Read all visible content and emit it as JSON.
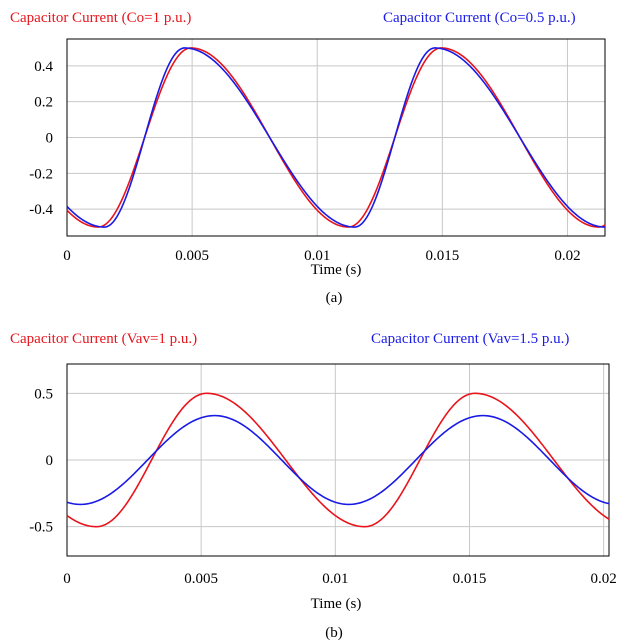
{
  "colors": {
    "red": "#e8141c",
    "blue": "#1a1ae6",
    "grid": "#c8c8c8",
    "axis": "#000000"
  },
  "chart_data": [
    {
      "type": "line",
      "panel_label": "(a)",
      "xlabel": "Time (s)",
      "ylabel": "",
      "xlim": [
        0,
        0.0215
      ],
      "ylim": [
        -0.55,
        0.55
      ],
      "xticks": [
        0,
        0.005,
        0.01,
        0.015,
        0.02
      ],
      "xtick_labels": [
        "0",
        "0.005",
        "0.01",
        "0.015",
        "0.02"
      ],
      "yticks": [
        0.4,
        0.2,
        0,
        -0.2,
        -0.4
      ],
      "ytick_labels": [
        "0.4",
        "0.2",
        "0",
        "-0.2",
        "-0.4"
      ],
      "grid": true,
      "legend_position": "top",
      "series": [
        {
          "name": "Capacitor Current (Co=1 p.u.)",
          "color": "#e8141c",
          "amplitude": 0.5,
          "period": 0.01,
          "first_trough_s": 0.00125,
          "rise_time_s": 0.0037,
          "x": [
            0,
            0.00125,
            0.00496,
            0.01125,
            0.01496,
            0.02125
          ],
          "y": [
            -0.42,
            -0.5,
            0.5,
            -0.5,
            0.5,
            -0.5
          ]
        },
        {
          "name": "Capacitor Current (Co=0.5 p.u.)",
          "color": "#1a1ae6",
          "amplitude": 0.5,
          "period": 0.01,
          "first_trough_s": 0.0015,
          "rise_time_s": 0.0032,
          "x": [
            0,
            0.0015,
            0.0047,
            0.0115,
            0.0147,
            0.0215
          ],
          "y": [
            -0.37,
            -0.5,
            0.5,
            -0.5,
            0.5,
            -0.5
          ]
        }
      ]
    },
    {
      "type": "line",
      "panel_label": "(b)",
      "xlabel": "Time (s)",
      "ylabel": "",
      "xlim": [
        0,
        0.0202
      ],
      "ylim": [
        -0.72,
        0.72
      ],
      "xticks": [
        0,
        0.005,
        0.01,
        0.015,
        0.02
      ],
      "xtick_labels": [
        "0",
        "0.005",
        "0.01",
        "0.015",
        "0.02"
      ],
      "yticks": [
        0.5,
        0,
        -0.5
      ],
      "ytick_labels": [
        "0.5",
        "0",
        "-0.5"
      ],
      "grid": true,
      "legend_position": "top",
      "series": [
        {
          "name": "Capacitor Current (Vav=1 p.u.)",
          "color": "#e8141c",
          "amplitude": 0.5,
          "period": 0.01,
          "first_trough_s": 0.0011,
          "rise_time_s": 0.0041,
          "x": [
            0,
            0.0011,
            0.0052,
            0.0111,
            0.0152,
            0.0202
          ],
          "y": [
            -0.42,
            -0.5,
            0.5,
            -0.5,
            0.5,
            -0.46
          ]
        },
        {
          "name": "Capacitor Current (Vav=1.5 p.u.)",
          "color": "#1a1ae6",
          "amplitude": 0.333,
          "period": 0.01,
          "first_trough_s": 0.0005,
          "rise_time_s": 0.005,
          "x": [
            0,
            0.0005,
            0.0055,
            0.0105,
            0.0155,
            0.0202
          ],
          "y": [
            -0.3,
            -0.333,
            0.333,
            -0.333,
            0.333,
            -0.32
          ]
        }
      ]
    }
  ]
}
